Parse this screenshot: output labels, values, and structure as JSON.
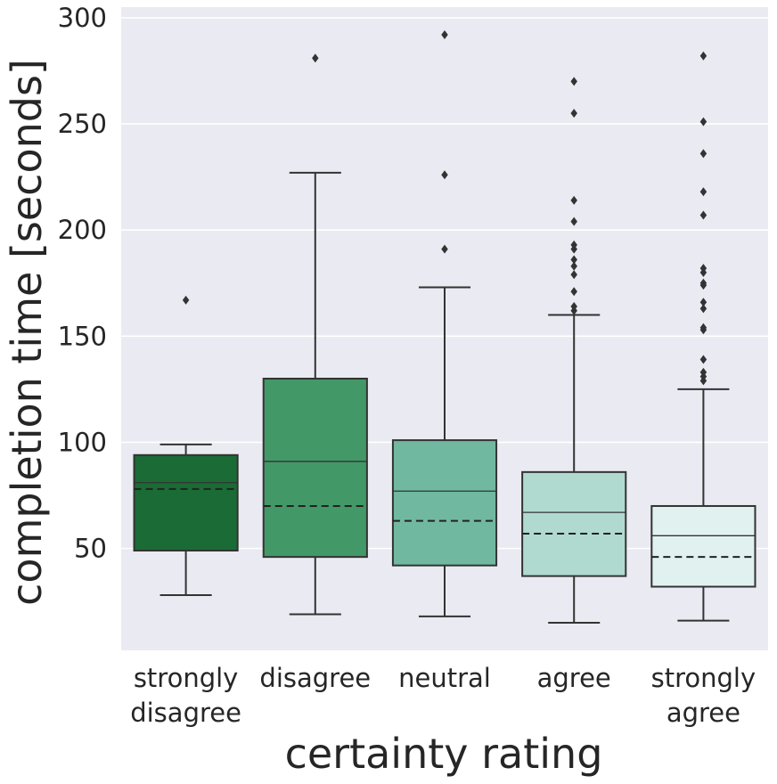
{
  "chart_data": {
    "type": "box",
    "xlabel": "certainty rating",
    "ylabel": "completion time [seconds]",
    "ylim": [
      2,
      305
    ],
    "yticks": [
      50,
      100,
      150,
      200,
      250,
      300
    ],
    "grid": true,
    "mean_line_style": "dashed",
    "median_line_style": "solid",
    "categories": [
      {
        "label_lines": [
          "strongly",
          "disagree"
        ],
        "color": "#1a6b35",
        "whisker_low": 28,
        "q1": 49,
        "median": 81,
        "mean": 78,
        "q3": 94,
        "whisker_high": 99,
        "outliers": [
          167
        ]
      },
      {
        "label_lines": [
          "disagree"
        ],
        "color": "#429867",
        "whisker_low": 19,
        "q1": 46,
        "median": 91,
        "mean": 70,
        "q3": 130,
        "whisker_high": 227,
        "outliers": [
          281
        ]
      },
      {
        "label_lines": [
          "neutral"
        ],
        "color": "#71b8a0",
        "whisker_low": 18,
        "q1": 42,
        "median": 77,
        "mean": 63,
        "q3": 101,
        "whisker_high": 173,
        "outliers": [
          191,
          226,
          292
        ]
      },
      {
        "label_lines": [
          "agree"
        ],
        "color": "#b0dad0",
        "whisker_low": 15,
        "q1": 37,
        "median": 67,
        "mean": 57,
        "q3": 86,
        "whisker_high": 160,
        "outliers": [
          162,
          164,
          171,
          179,
          183,
          186,
          191,
          193,
          204,
          214,
          255,
          270
        ]
      },
      {
        "label_lines": [
          "strongly",
          "agree"
        ],
        "color": "#e1f1f0",
        "whisker_low": 16,
        "q1": 32,
        "median": 56,
        "mean": 46,
        "q3": 70,
        "whisker_high": 125,
        "outliers": [
          129,
          131,
          133,
          139,
          153,
          154,
          163,
          166,
          174,
          175,
          180,
          182,
          207,
          218,
          236,
          251,
          282
        ]
      }
    ]
  }
}
